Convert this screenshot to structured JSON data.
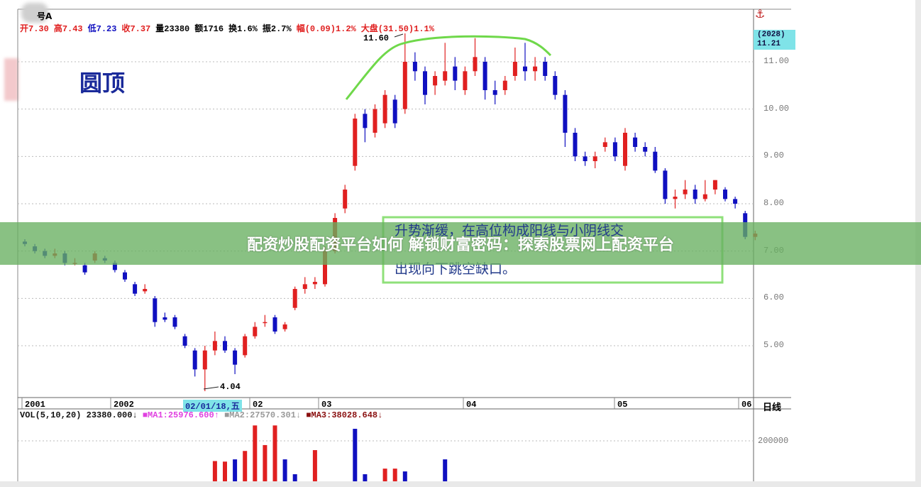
{
  "header": {
    "items": [
      {
        "text": "开7.30",
        "color": "#e02020"
      },
      {
        "text": "高7.43",
        "color": "#e02020"
      },
      {
        "text": "低7.23",
        "color": "#1010c0"
      },
      {
        "text": "收7.37",
        "color": "#e02020"
      },
      {
        "text": "量23380",
        "color": "#000000"
      },
      {
        "text": "额1716",
        "color": "#000000"
      },
      {
        "text": "换1.6%",
        "color": "#000000"
      },
      {
        "text": "振2.7%",
        "color": "#000000"
      },
      {
        "text": "幅(0.09)1.2%",
        "color": "#e02020"
      },
      {
        "text": "大盘(31.50)1.1%",
        "color": "#e02020"
      }
    ],
    "title_suffix": "号A"
  },
  "price_tag": {
    "line1": "(2028)",
    "line2": "11.21"
  },
  "annotations": {
    "pattern_title": "圆顶",
    "high_label": "11.60",
    "low_label": "4.04",
    "note_line1": "升势渐缓，在高位构成阳线与小阴线交",
    "note_line3": "出现向下跳空缺口。",
    "cursor_date": "02/01/18,五",
    "period": "日线"
  },
  "volume_header": {
    "vol": "VOL(5,10,20) 23380.000↓",
    "ma1": "■MA1:25976.600↑",
    "ma2": "■MA2:27570.301↓",
    "ma3": "■MA3:38028.648↓"
  },
  "banner": {
    "text": "配资炒股配资平台如何 解锁财富密码：探索股票网上配资平台"
  },
  "colors": {
    "up": "#e02020",
    "down": "#1010c0",
    "arc": "#6fd84a",
    "note_box": "#8fe07a",
    "tag_bg": "#7fe3e8"
  },
  "chart_data": {
    "type": "candlestick",
    "ylim": [
      4,
      11.6
    ],
    "yticks": [
      "11.00",
      "10.00",
      "9.00",
      "8.00",
      "7.00",
      "6.00",
      "5.00"
    ],
    "xticks": [
      "2001",
      "2002",
      "02",
      "03",
      "04",
      "05",
      "06"
    ],
    "volume_ticks": [
      "200000"
    ],
    "grid": true,
    "candles": [
      [
        7.2,
        7.25,
        7.1,
        7.15
      ],
      [
        7.1,
        7.15,
        6.95,
        7.0
      ],
      [
        7.0,
        7.05,
        6.85,
        6.9
      ],
      [
        6.9,
        7.05,
        6.85,
        6.95
      ],
      [
        6.95,
        7.0,
        6.7,
        6.75
      ],
      [
        6.75,
        6.85,
        6.7,
        6.75
      ],
      [
        6.7,
        6.75,
        6.5,
        6.55
      ],
      [
        6.8,
        7.0,
        6.75,
        6.95
      ],
      [
        6.85,
        6.9,
        6.75,
        6.8
      ],
      [
        6.75,
        6.8,
        6.55,
        6.6
      ],
      [
        6.55,
        6.6,
        6.35,
        6.4
      ],
      [
        6.3,
        6.35,
        6.05,
        6.1
      ],
      [
        6.15,
        6.3,
        6.1,
        6.2
      ],
      [
        6.0,
        6.05,
        5.4,
        5.5
      ],
      [
        5.6,
        5.7,
        5.5,
        5.55
      ],
      [
        5.6,
        5.65,
        5.35,
        5.4
      ],
      [
        5.2,
        5.25,
        4.95,
        5.0
      ],
      [
        4.9,
        4.95,
        4.35,
        4.5
      ],
      [
        4.5,
        5.0,
        4.04,
        4.9
      ],
      [
        4.9,
        5.3,
        4.8,
        5.1
      ],
      [
        5.1,
        5.2,
        4.85,
        4.9
      ],
      [
        4.9,
        4.95,
        4.4,
        4.6
      ],
      [
        4.8,
        5.25,
        4.75,
        5.2
      ],
      [
        5.2,
        5.5,
        5.15,
        5.4
      ],
      [
        5.5,
        5.65,
        5.4,
        5.5
      ],
      [
        5.6,
        5.65,
        5.25,
        5.3
      ],
      [
        5.35,
        5.5,
        5.3,
        5.45
      ],
      [
        5.8,
        6.25,
        5.75,
        6.2
      ],
      [
        6.2,
        6.45,
        6.1,
        6.3
      ],
      [
        6.3,
        6.45,
        6.2,
        6.35
      ],
      [
        6.3,
        7.1,
        6.25,
        7.0
      ],
      [
        7.0,
        7.8,
        6.95,
        7.7
      ],
      [
        7.9,
        8.4,
        7.8,
        8.3
      ],
      [
        8.8,
        9.9,
        8.7,
        9.8
      ],
      [
        9.9,
        10.0,
        9.3,
        9.6
      ],
      [
        9.5,
        10.1,
        9.4,
        10.0
      ],
      [
        9.7,
        10.4,
        9.6,
        10.3
      ],
      [
        10.2,
        10.3,
        9.6,
        9.7
      ],
      [
        10.0,
        11.6,
        9.9,
        11.0
      ],
      [
        11.0,
        11.2,
        10.6,
        10.8
      ],
      [
        10.8,
        10.9,
        10.1,
        10.3
      ],
      [
        10.5,
        10.8,
        10.3,
        10.7
      ],
      [
        10.6,
        11.4,
        10.5,
        10.8
      ],
      [
        10.9,
        11.1,
        10.4,
        10.6
      ],
      [
        10.4,
        10.9,
        10.3,
        10.8
      ],
      [
        10.8,
        11.5,
        10.7,
        11.1
      ],
      [
        11.0,
        11.1,
        10.2,
        10.4
      ],
      [
        10.4,
        10.6,
        10.1,
        10.3
      ],
      [
        10.4,
        10.7,
        10.3,
        10.6
      ],
      [
        10.7,
        11.3,
        10.6,
        11.0
      ],
      [
        10.9,
        11.4,
        10.6,
        10.8
      ],
      [
        10.8,
        11.1,
        10.6,
        10.9
      ],
      [
        11.0,
        11.1,
        10.6,
        10.7
      ],
      [
        10.7,
        10.8,
        10.2,
        10.3
      ],
      [
        10.3,
        10.4,
        9.2,
        9.5
      ],
      [
        9.5,
        9.6,
        8.9,
        9.0
      ],
      [
        9.0,
        9.1,
        8.8,
        8.9
      ],
      [
        8.9,
        9.1,
        8.75,
        9.0
      ],
      [
        9.2,
        9.4,
        9.1,
        9.3
      ],
      [
        9.3,
        9.4,
        8.9,
        9.0
      ],
      [
        8.8,
        9.6,
        8.7,
        9.5
      ],
      [
        9.4,
        9.5,
        9.1,
        9.2
      ],
      [
        9.2,
        9.3,
        9.0,
        9.1
      ],
      [
        9.1,
        9.2,
        8.65,
        8.7
      ],
      [
        8.7,
        8.75,
        8.0,
        8.1
      ],
      [
        8.1,
        8.3,
        7.9,
        8.15
      ],
      [
        8.2,
        8.5,
        8.1,
        8.3
      ],
      [
        8.3,
        8.4,
        8.0,
        8.1
      ],
      [
        8.1,
        8.5,
        8.05,
        8.2
      ],
      [
        8.3,
        8.5,
        8.2,
        8.5
      ],
      [
        8.3,
        8.35,
        8.05,
        8.1
      ],
      [
        8.1,
        8.15,
        7.9,
        8.0
      ],
      [
        7.8,
        7.85,
        7.25,
        7.3
      ],
      [
        7.3,
        7.43,
        7.23,
        7.37
      ]
    ],
    "volumes": [
      {
        "bar": 19,
        "value": 128000,
        "dir": "up"
      },
      {
        "bar": 20,
        "value": 126000,
        "dir": "up"
      },
      {
        "bar": 21,
        "value": 134000,
        "dir": "down"
      },
      {
        "bar": 22,
        "value": 164000,
        "dir": "up"
      },
      {
        "bar": 23,
        "value": 255000,
        "dir": "up"
      },
      {
        "bar": 24,
        "value": 185000,
        "dir": "up"
      },
      {
        "bar": 25,
        "value": 255000,
        "dir": "up"
      },
      {
        "bar": 26,
        "value": 134000,
        "dir": "down"
      },
      {
        "bar": 27,
        "value": 81000,
        "dir": "down"
      },
      {
        "bar": 29,
        "value": 167000,
        "dir": "up"
      },
      {
        "bar": 33,
        "value": 243000,
        "dir": "down"
      },
      {
        "bar": 34,
        "value": 81000,
        "dir": "down"
      },
      {
        "bar": 36,
        "value": 101000,
        "dir": "up"
      },
      {
        "bar": 37,
        "value": 101000,
        "dir": "up"
      },
      {
        "bar": 38,
        "value": 91000,
        "dir": "down"
      },
      {
        "bar": 42,
        "value": 134000,
        "dir": "down"
      }
    ]
  }
}
